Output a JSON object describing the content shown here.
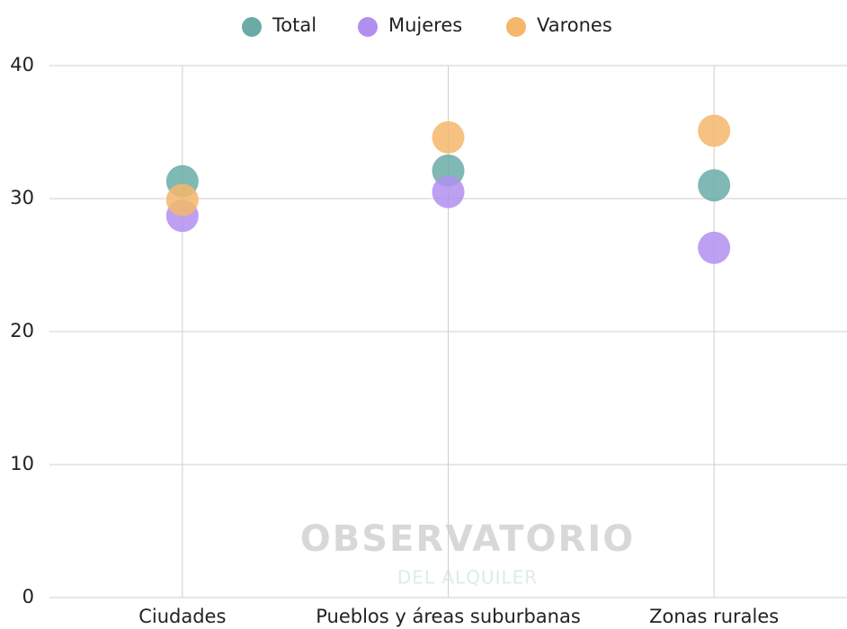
{
  "chart_data": {
    "type": "dot",
    "categories": [
      "Ciudades",
      "Pueblos y áreas suburbanas",
      "Zonas rurales"
    ],
    "series": [
      {
        "name": "Total",
        "color": "#6aaba6",
        "values": [
          31.3,
          32.1,
          31.0
        ]
      },
      {
        "name": "Mujeres",
        "color": "#b18ff0",
        "values": [
          28.7,
          30.5,
          26.3
        ]
      },
      {
        "name": "Varones",
        "color": "#f5b76b",
        "values": [
          29.9,
          34.6,
          35.1
        ]
      }
    ],
    "ylim": [
      0,
      40
    ],
    "yticks": [
      0,
      10,
      20,
      30,
      40
    ],
    "grid": true,
    "legend": "top",
    "watermark": "OBSERVATORIO",
    "watermark_subtitle": "DEL ALQUILER"
  }
}
